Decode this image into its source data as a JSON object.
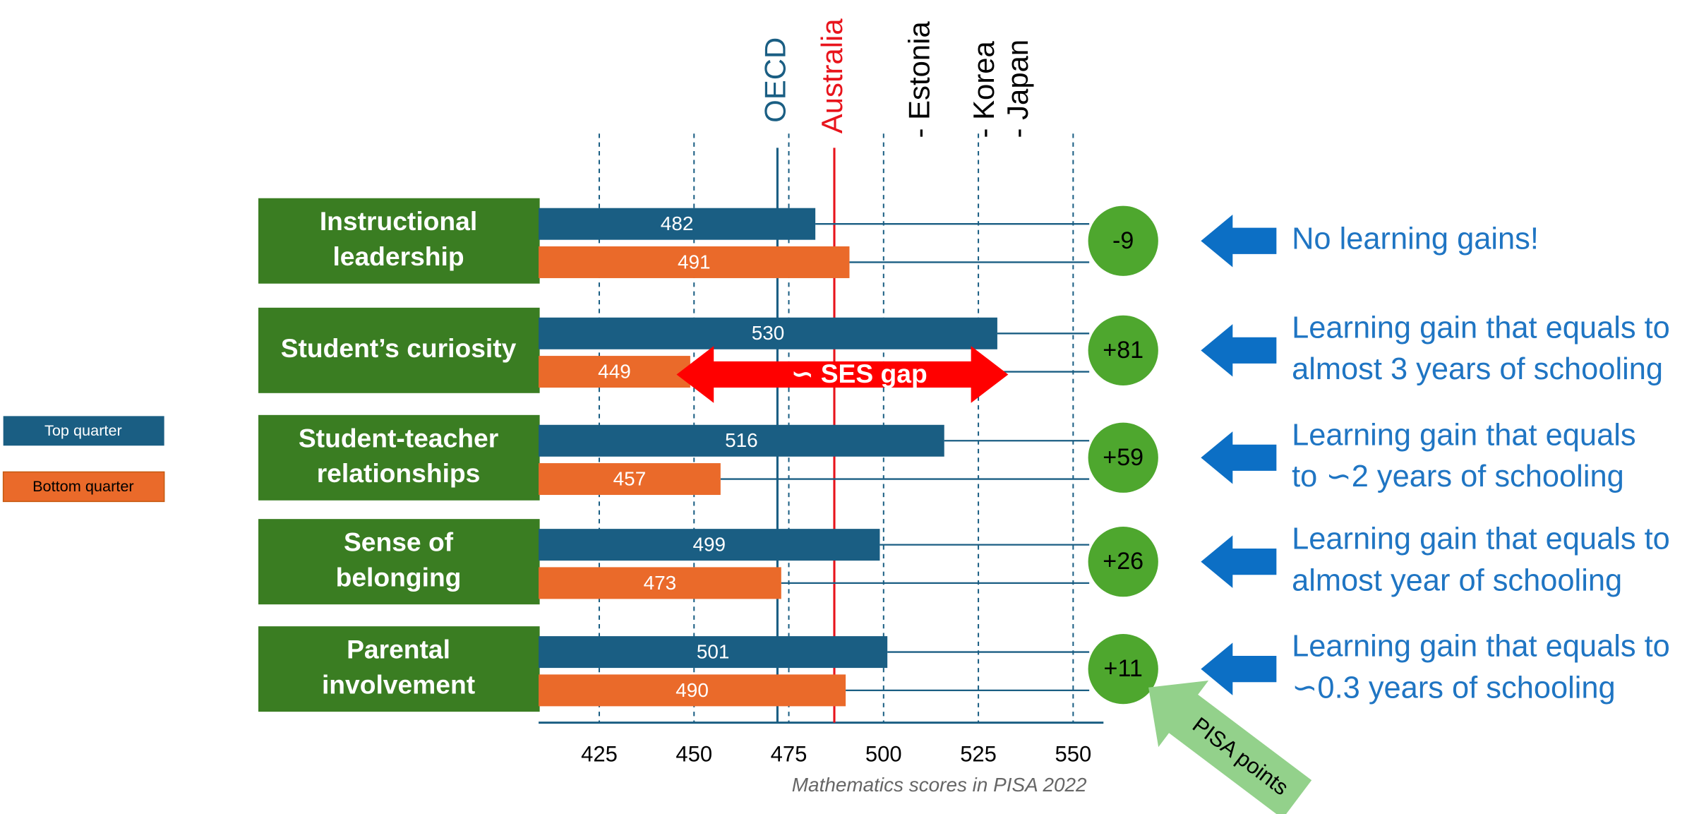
{
  "chart_data": {
    "type": "hbar",
    "categories": [
      [
        "Instructional",
        "leadership"
      ],
      [
        "Student’s curiosity"
      ],
      [
        "Student-teacher",
        "relationships"
      ],
      [
        "Sense of",
        "belonging"
      ],
      [
        "Parental",
        "involvement"
      ]
    ],
    "series": [
      {
        "name": "Top quarter",
        "color": "#1a5e83",
        "values": [
          482,
          530,
          516,
          499,
          501
        ]
      },
      {
        "name": "Bottom quarter",
        "color": "#ea6a2a",
        "values": [
          491,
          449,
          457,
          473,
          490
        ]
      }
    ],
    "xlim": [
      409,
      558
    ],
    "xticks": [
      425,
      450,
      475,
      500,
      525,
      550
    ],
    "grid": true,
    "x_label": "Mathematics scores in PISA 2022",
    "reference_lines": [
      {
        "label": "OECD",
        "value": 472,
        "color": "#1a5e83"
      },
      {
        "label": "Australia",
        "value": 487,
        "color": "#e8141c"
      },
      {
        "label": "- Estonia",
        "value": 510
      },
      {
        "label": "- Korea",
        "value": 527
      },
      {
        "label": "- Japan",
        "value": 536
      }
    ],
    "differences": {
      "values": [
        -9,
        81,
        59,
        26,
        11
      ],
      "value_labels": [
        "-9",
        "+81",
        "+59",
        "+26",
        "+11"
      ],
      "color": "#4ea72e"
    },
    "annotations": [
      [
        "No learning gains!"
      ],
      [
        "Learning gain that equals to",
        "almost 3 years of schooling"
      ],
      [
        "Learning gain that equals",
        "to ∽2 years of schooling"
      ],
      [
        "Learning gain that equals to",
        "almost year of schooling"
      ],
      [
        "Learning gain that equals to",
        "∽0.3 years of schooling"
      ]
    ],
    "ses_gap_label": "∽ SES gap",
    "pisa_points_label": "PISA points"
  }
}
